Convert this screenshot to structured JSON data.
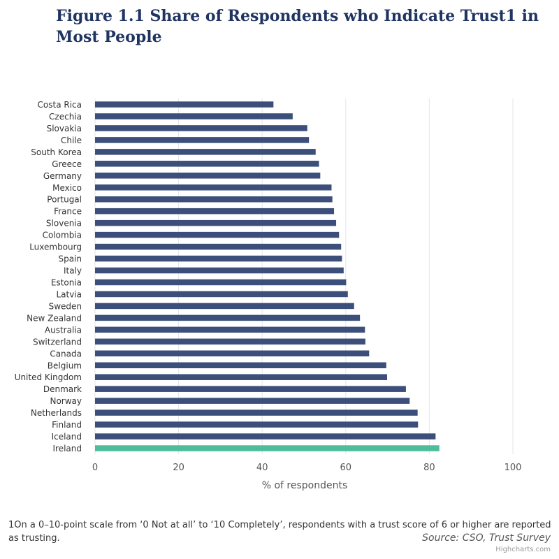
{
  "colors": {
    "bar": "#3b4f7a",
    "highlight": "#4dbd9b",
    "title": "#1f3461",
    "grid": "#e6e6e6"
  },
  "chart_data": {
    "type": "bar",
    "orientation": "horizontal",
    "title": "Figure 1.1 Share of Respondents who Indicate Trust1 in Most People",
    "xlabel": "% of respondents",
    "xlim": [
      0,
      100
    ],
    "xticks": [
      0,
      20,
      40,
      60,
      80,
      100
    ],
    "grid": true,
    "categories": [
      "Costa Rica",
      "Czechia",
      "Slovakia",
      "Chile",
      "South Korea",
      "Greece",
      "Germany",
      "Mexico",
      "Portugal",
      "France",
      "Slovenia",
      "Colombia",
      "Luxembourg",
      "Spain",
      "Italy",
      "Estonia",
      "Latvia",
      "Sweden",
      "New Zealand",
      "Australia",
      "Switzerland",
      "Canada",
      "Belgium",
      "United Kingdom",
      "Denmark",
      "Norway",
      "Netherlands",
      "Finland",
      "Iceland",
      "Ireland"
    ],
    "values": [
      42.7,
      47.3,
      50.8,
      51.2,
      52.8,
      53.6,
      53.9,
      56.6,
      56.8,
      57.2,
      57.7,
      58.4,
      58.9,
      59.1,
      59.5,
      60.1,
      60.5,
      62.0,
      63.4,
      64.6,
      64.7,
      65.6,
      69.7,
      69.9,
      74.4,
      75.3,
      77.2,
      77.3,
      81.5,
      82.4
    ],
    "highlight": "Ireland"
  },
  "footnote": "1On a 0–10-point scale from ‘0 Not at all’ to ‘10 Completely’, respondents with a trust score of 6 or higher are reported as trusting.",
  "source": "Source: CSO, Trust Survey",
  "credits": "Highcharts.com"
}
